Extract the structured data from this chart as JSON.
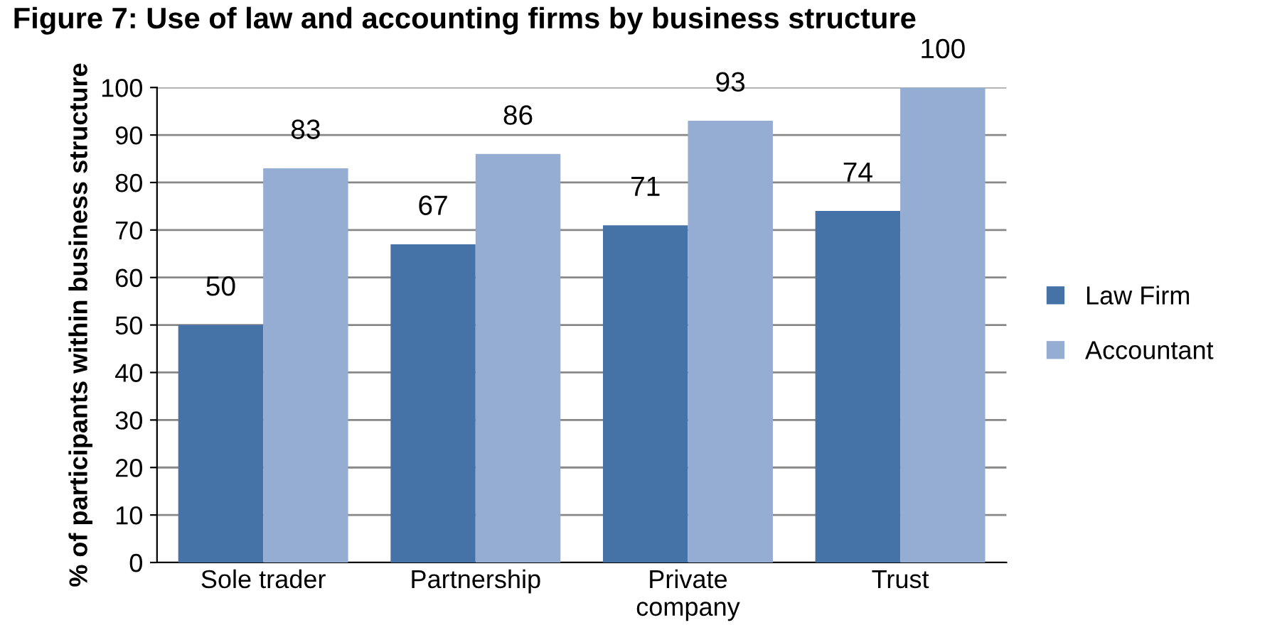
{
  "chart_data": {
    "type": "bar",
    "title": "Figure 7: Use of law and accounting firms by business structure",
    "ylabel": "% of participants within business structure",
    "categories": [
      "Sole trader",
      "Partnership",
      "Private company",
      "Trust"
    ],
    "series": [
      {
        "name": "Law Firm",
        "color": "#4572a7",
        "values": [
          50,
          67,
          71,
          74
        ]
      },
      {
        "name": "Accountant",
        "color": "#95acd3",
        "values": [
          83,
          86,
          93,
          100
        ]
      }
    ],
    "ylim": [
      0,
      100
    ],
    "yticks": [
      0,
      10,
      20,
      30,
      40,
      50,
      60,
      70,
      80,
      90,
      100
    ],
    "grid": "y",
    "legend": "right",
    "data_labels": true
  }
}
